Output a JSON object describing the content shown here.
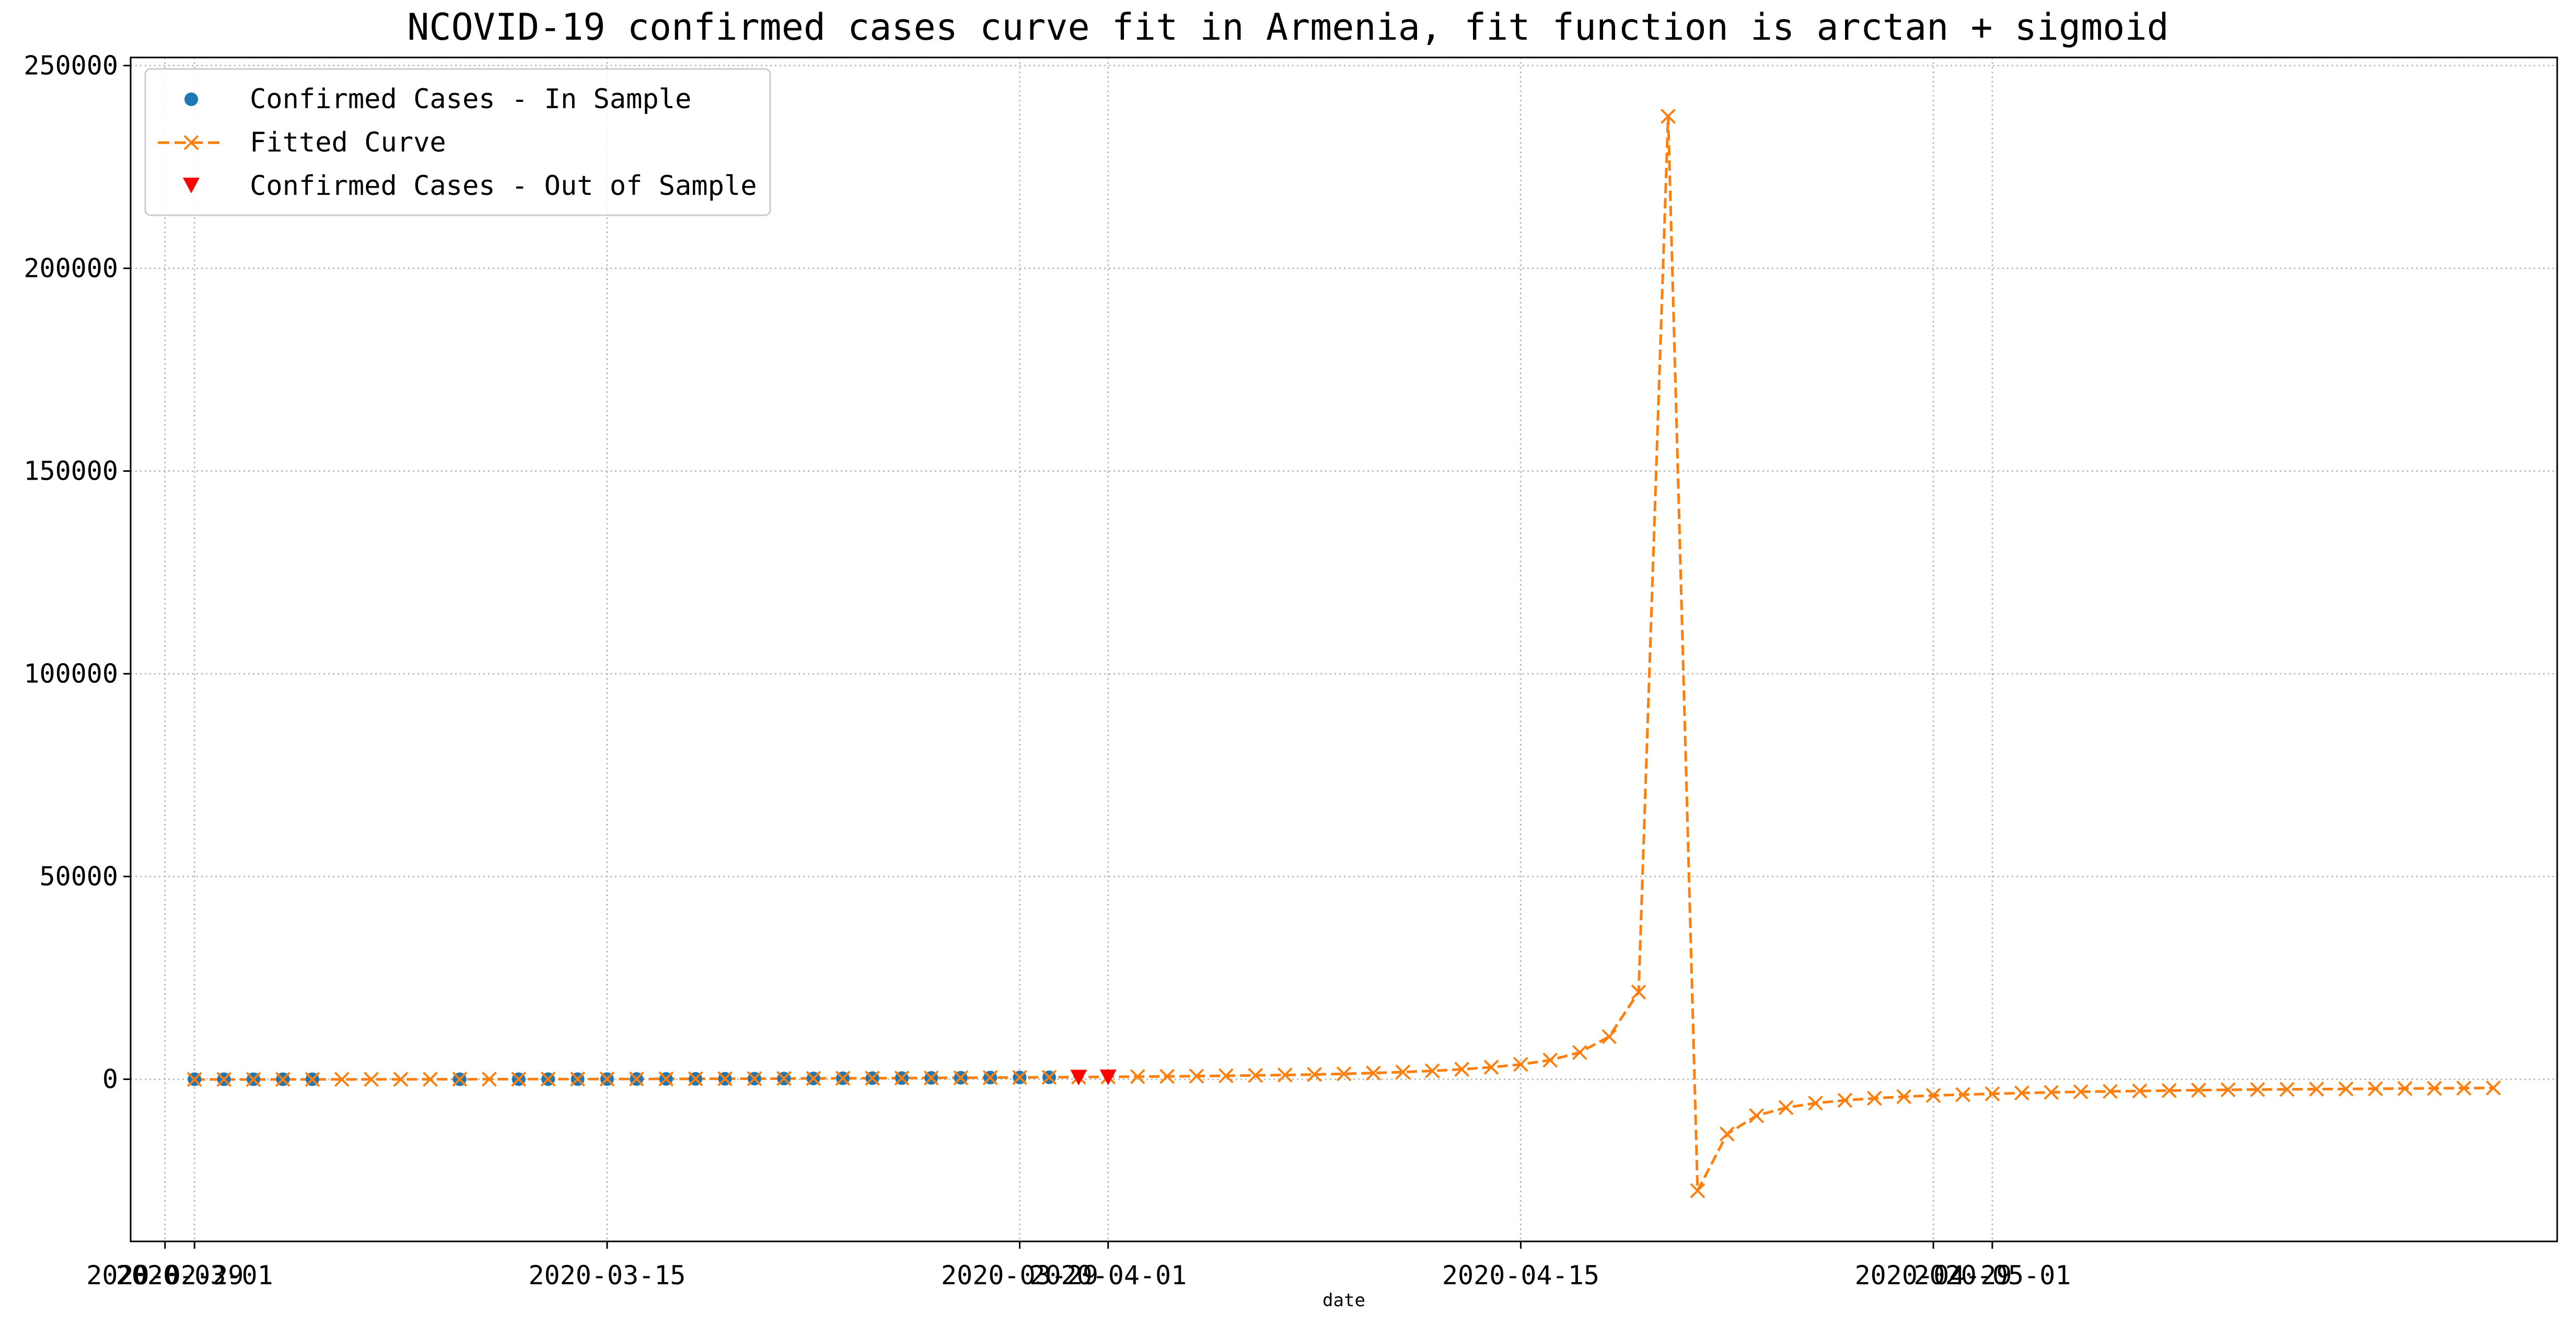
{
  "chart_data": {
    "type": "line",
    "title": "NCOVID-19 confirmed cases curve fit in Armenia, fit function is arctan + sigmoid",
    "xlabel": "date",
    "ylabel": "",
    "ylim": [
      -40000,
      252000
    ],
    "xlim": [
      "2020-02-27T20:00",
      "2020-05-20T04:00"
    ],
    "grid": true,
    "grid_style": "dotted",
    "legend_position": "upper-left",
    "x_ticks": [
      "2020-03-01",
      "2020-03-15",
      "2020-04-01",
      "2020-04-15",
      "2020-05-01"
    ],
    "x_ticks_overlapping_labels": [
      "2020-02-29",
      "2020-03-29",
      "2020-04-29"
    ],
    "y_ticks": [
      0,
      50000,
      100000,
      150000,
      200000,
      250000
    ],
    "colors": {
      "in_sample": "#1f77b4",
      "fitted": "#ff7f0e",
      "out_of_sample": "#ff0000",
      "grid": "#b0b0b0"
    },
    "series": [
      {
        "name": "Confirmed Cases - In Sample",
        "style": "marker-circle",
        "x": [
          "2020-03-01",
          "2020-03-02",
          "2020-03-03",
          "2020-03-04",
          "2020-03-05",
          "2020-03-10",
          "2020-03-12",
          "2020-03-13",
          "2020-03-14",
          "2020-03-15",
          "2020-03-16",
          "2020-03-17",
          "2020-03-18",
          "2020-03-19",
          "2020-03-20",
          "2020-03-21",
          "2020-03-22",
          "2020-03-23",
          "2020-03-24",
          "2020-03-25",
          "2020-03-26",
          "2020-03-27",
          "2020-03-28",
          "2020-03-29",
          "2020-03-30"
        ],
        "y": [
          1,
          1,
          1,
          1,
          1,
          1,
          8,
          18,
          26,
          32,
          52,
          78,
          84,
          115,
          136,
          160,
          194,
          235,
          265,
          290,
          329,
          372,
          407,
          424,
          482
        ]
      },
      {
        "name": "Fitted Curve",
        "style": "dashed-x",
        "x": [
          "2020-03-01",
          "2020-03-02",
          "2020-03-03",
          "2020-03-04",
          "2020-03-05",
          "2020-03-06",
          "2020-03-07",
          "2020-03-08",
          "2020-03-09",
          "2020-03-10",
          "2020-03-11",
          "2020-03-12",
          "2020-03-13",
          "2020-03-14",
          "2020-03-15",
          "2020-03-16",
          "2020-03-17",
          "2020-03-18",
          "2020-03-19",
          "2020-03-20",
          "2020-03-21",
          "2020-03-22",
          "2020-03-23",
          "2020-03-24",
          "2020-03-25",
          "2020-03-26",
          "2020-03-27",
          "2020-03-28",
          "2020-03-29",
          "2020-03-30",
          "2020-03-31",
          "2020-04-01",
          "2020-04-02",
          "2020-04-03",
          "2020-04-04",
          "2020-04-05",
          "2020-04-06",
          "2020-04-07",
          "2020-04-08",
          "2020-04-09",
          "2020-04-10",
          "2020-04-11",
          "2020-04-12",
          "2020-04-13",
          "2020-04-14",
          "2020-04-15",
          "2020-04-16",
          "2020-04-17",
          "2020-04-18",
          "2020-04-19",
          "2020-04-20",
          "2020-04-21",
          "2020-04-22",
          "2020-04-23",
          "2020-04-24",
          "2020-04-25",
          "2020-04-26",
          "2020-04-27",
          "2020-04-28",
          "2020-04-29",
          "2020-04-30",
          "2020-05-01",
          "2020-05-02",
          "2020-05-03",
          "2020-05-04",
          "2020-05-05",
          "2020-05-06",
          "2020-05-07",
          "2020-05-08",
          "2020-05-09",
          "2020-05-10",
          "2020-05-11",
          "2020-05-12",
          "2020-05-13",
          "2020-05-14",
          "2020-05-15",
          "2020-05-16",
          "2020-05-17",
          "2020-05-18"
        ],
        "y": [
          -60,
          -55,
          -50,
          -45,
          -40,
          -35,
          -30,
          -20,
          -10,
          0,
          10,
          20,
          30,
          40,
          50,
          60,
          80,
          100,
          120,
          140,
          170,
          200,
          230,
          260,
          290,
          320,
          360,
          400,
          440,
          480,
          530,
          580,
          640,
          700,
          770,
          850,
          940,
          1040,
          1170,
          1330,
          1520,
          1760,
          2060,
          2450,
          2950,
          3650,
          4700,
          6600,
          10500,
          21500,
          237500,
          -27500,
          -13500,
          -9000,
          -7000,
          -5900,
          -5200,
          -4700,
          -4300,
          -4000,
          -3800,
          -3600,
          -3400,
          -3250,
          -3100,
          -3000,
          -2900,
          -2800,
          -2700,
          -2600,
          -2550,
          -2500,
          -2450,
          -2400,
          -2350,
          -2300,
          -2250,
          -2200,
          -2150
        ]
      },
      {
        "name": "Confirmed Cases - Out of Sample",
        "style": "marker-triangle-down",
        "x": [
          "2020-03-31",
          "2020-04-01"
        ],
        "y": [
          532,
          571
        ]
      }
    ]
  }
}
